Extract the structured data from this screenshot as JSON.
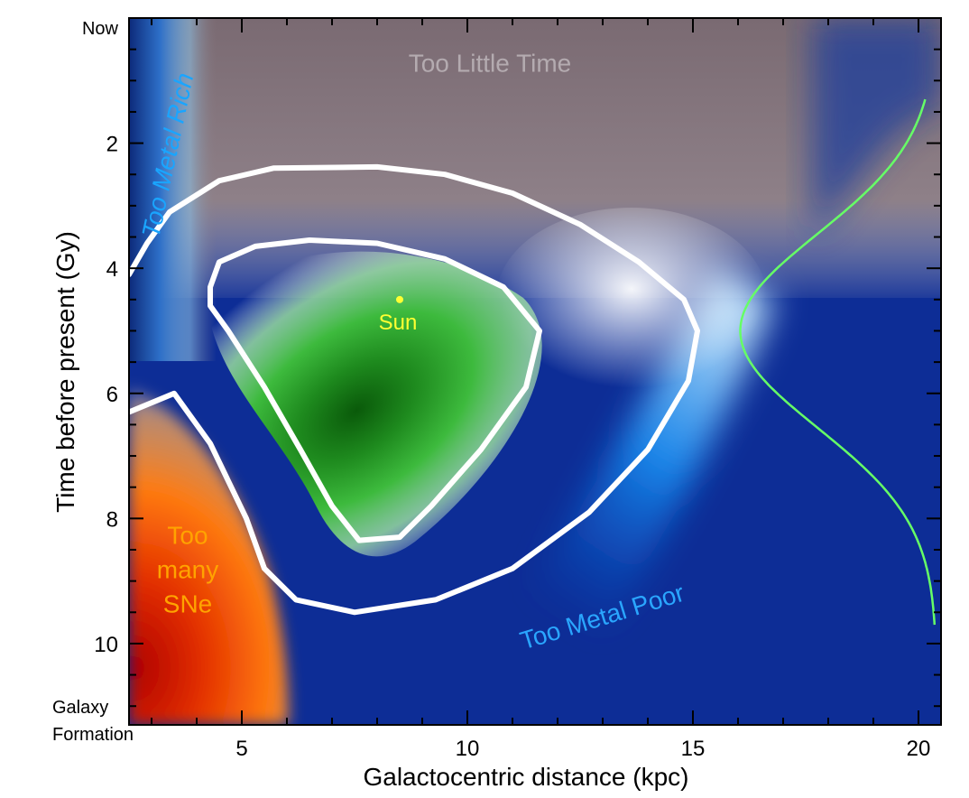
{
  "chart_data": {
    "type": "heatmap",
    "title": "",
    "xlabel": "Galactocentric distance (kpc)",
    "ylabel": "Time before present (Gy)",
    "xlim": [
      2.5,
      20.5
    ],
    "ylim": [
      0,
      11.3
    ],
    "y_axis_inverted": true,
    "grid": false,
    "x_ticks": [
      5,
      10,
      15,
      20
    ],
    "y_ticks": [
      2,
      4,
      6,
      8,
      10
    ],
    "y_end_labels": {
      "top": "Now",
      "bottom": [
        "Galaxy",
        "Formation"
      ]
    },
    "regions": [
      {
        "label": "Too Little Time",
        "color": "#b4abb0",
        "x": 10.5,
        "y": 0.75
      },
      {
        "label": "Too Metal Rich",
        "color": "#1aa5ff",
        "x": 3.4,
        "y": 2.2,
        "rotation": -78
      },
      {
        "label": "Too Metal Poor",
        "color": "#2aa6ff",
        "x": 13.0,
        "y": 9.6,
        "rotation": -17
      },
      {
        "label_lines": [
          "Too",
          "many",
          "SNe"
        ],
        "color": "#ffa300",
        "x": 3.8,
        "y": 8.85
      }
    ],
    "marker": {
      "label": "Sun",
      "x": 8.5,
      "y": 4.5,
      "color": "#ffff33"
    },
    "contours": [
      {
        "name": "outer",
        "color": "#ffffff",
        "points": [
          [
            2.5,
            4.1
          ],
          [
            2.9,
            3.6
          ],
          [
            3.4,
            3.1
          ],
          [
            4.5,
            2.6
          ],
          [
            5.7,
            2.4
          ],
          [
            8.0,
            2.38
          ],
          [
            9.5,
            2.5
          ],
          [
            11.0,
            2.8
          ],
          [
            12.5,
            3.3
          ],
          [
            13.8,
            3.9
          ],
          [
            14.8,
            4.5
          ],
          [
            15.1,
            5.0
          ],
          [
            14.9,
            5.8
          ],
          [
            14.0,
            6.9
          ],
          [
            12.7,
            7.9
          ],
          [
            11.0,
            8.8
          ],
          [
            9.3,
            9.3
          ],
          [
            7.5,
            9.5
          ],
          [
            6.2,
            9.3
          ],
          [
            5.5,
            8.8
          ],
          [
            5.1,
            8.0
          ],
          [
            4.7,
            7.4
          ],
          [
            4.3,
            6.8
          ],
          [
            3.5,
            6.0
          ],
          [
            2.5,
            6.3
          ]
        ]
      },
      {
        "name": "inner",
        "color": "#ffffff",
        "points": [
          [
            4.3,
            4.3
          ],
          [
            4.5,
            3.9
          ],
          [
            5.3,
            3.65
          ],
          [
            6.5,
            3.55
          ],
          [
            8.0,
            3.6
          ],
          [
            9.5,
            3.85
          ],
          [
            10.8,
            4.3
          ],
          [
            11.6,
            5.0
          ],
          [
            11.3,
            5.9
          ],
          [
            10.3,
            6.9
          ],
          [
            9.2,
            7.8
          ],
          [
            8.5,
            8.3
          ],
          [
            7.6,
            8.35
          ],
          [
            7.0,
            7.8
          ],
          [
            6.3,
            6.9
          ],
          [
            5.5,
            5.9
          ],
          [
            4.7,
            5.0
          ],
          [
            4.3,
            4.6
          ]
        ]
      }
    ],
    "distribution_curve": {
      "name": "age distribution",
      "color": "#66ff66",
      "baseline_x": 20.4,
      "peak_x": 16.05,
      "center_y": 5.0,
      "sigma": 1.55,
      "y_range": [
        1.3,
        9.7
      ]
    }
  }
}
